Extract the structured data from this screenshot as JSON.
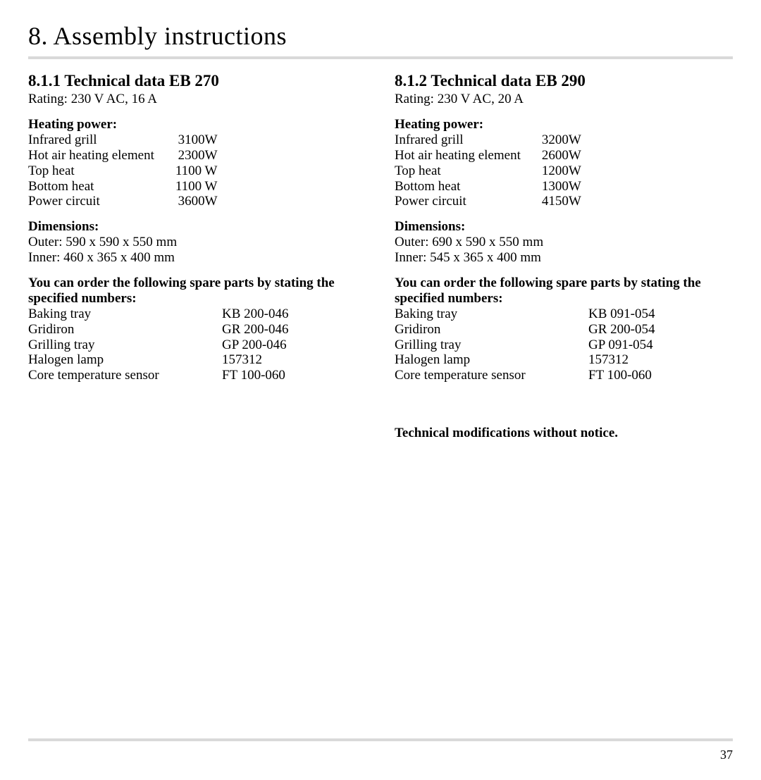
{
  "page_title": "8. Assembly instructions",
  "page_number": "37",
  "footer_note": "Technical modifications without notice.",
  "left": {
    "section_title": "8.1.1 Technical data EB 270",
    "rating": "Rating: 230 V AC, 16 A",
    "heating_power_heading": "Heating power:",
    "heating_power": [
      {
        "label": "Infrared grill",
        "value": "3100W"
      },
      {
        "label": "Hot air heating element",
        "value": "2300W"
      },
      {
        "label": "Top heat",
        "value": "1100 W"
      },
      {
        "label": "Bottom heat",
        "value": "1100 W"
      },
      {
        "label": "Power circuit",
        "value": "3600W"
      }
    ],
    "dimensions_heading": "Dimensions:",
    "dimensions_outer": "Outer:  590 x 590 x 550 mm",
    "dimensions_inner": "Inner:   460 x 365 x 400 mm",
    "spare_heading": "You can order the following spare parts by stating the specified numbers:",
    "spare_parts": [
      {
        "label": "Baking tray",
        "value": "KB 200-046"
      },
      {
        "label": "Gridiron",
        "value": "GR 200-046"
      },
      {
        "label": "Grilling tray",
        "value": "GP 200-046"
      },
      {
        "label": "Halogen lamp",
        "value": "157312"
      },
      {
        "label": "Core temperature sensor",
        "value": "FT 100-060"
      }
    ]
  },
  "right": {
    "section_title": "8.1.2 Technical data EB 290",
    "rating": "Rating: 230 V AC, 20 A",
    "heating_power_heading": "Heating power:",
    "heating_power": [
      {
        "label": "Infrared grill",
        "value": "3200W"
      },
      {
        "label": "Hot air heating element",
        "value": "2600W"
      },
      {
        "label": "Top heat",
        "value": "1200W"
      },
      {
        "label": "Bottom heat",
        "value": "1300W"
      },
      {
        "label": "Power circuit",
        "value": "4150W"
      }
    ],
    "dimensions_heading": "Dimensions:",
    "dimensions_outer": "Outer:  690 x 590 x 550 mm",
    "dimensions_inner": "Inner:   545 x 365 x 400 mm",
    "spare_heading": "You can order the following spare parts by stating the specified numbers:",
    "spare_parts": [
      {
        "label": "Baking tray",
        "value": "KB 091-054"
      },
      {
        "label": "Gridiron",
        "value": "GR 200-054"
      },
      {
        "label": "Grilling tray",
        "value": "GP 091-054"
      },
      {
        "label": "Halogen lamp",
        "value": "157312"
      },
      {
        "label": "Core temperature sensor",
        "value": "FT 100-060"
      }
    ]
  }
}
